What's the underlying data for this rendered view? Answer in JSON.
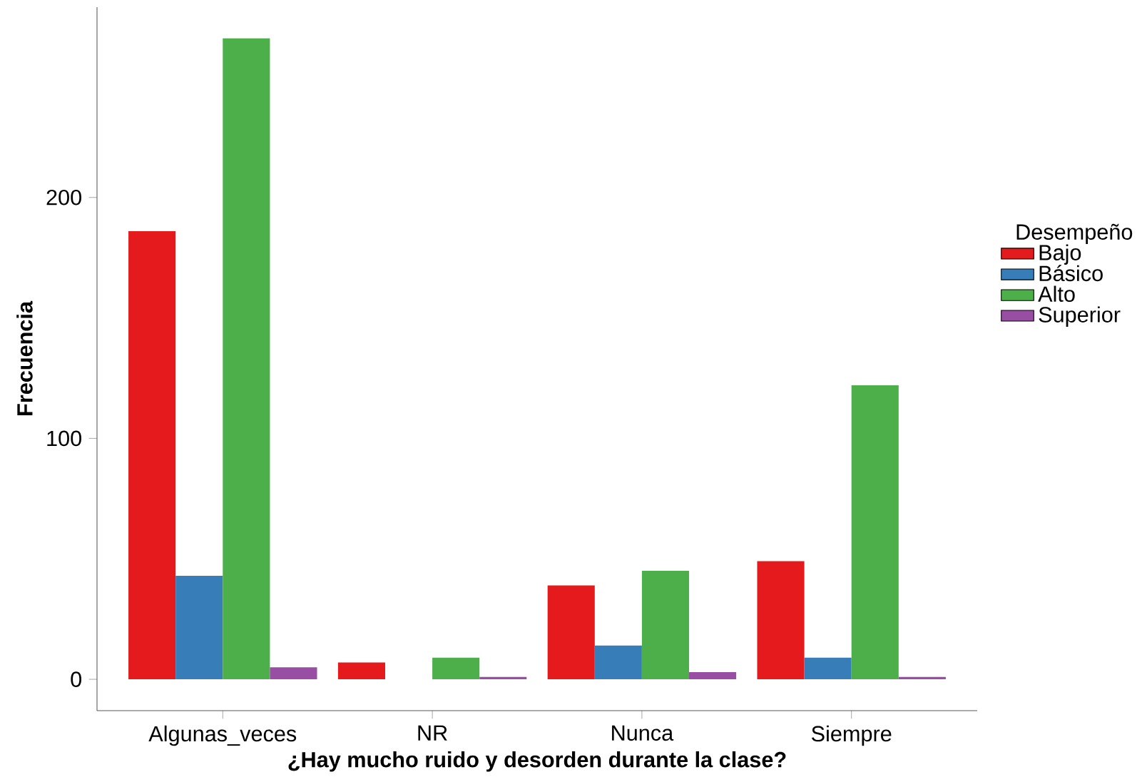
{
  "chart_data": {
    "type": "bar",
    "xlabel": "¿Hay mucho ruido y desorden durante la clase?",
    "ylabel": "Frecuencia",
    "legend_title": "Desempeño",
    "categories": [
      "Algunas_veces",
      "NR",
      "Nunca",
      "Siempre"
    ],
    "series": [
      {
        "name": "Bajo",
        "color": "#e41a1c",
        "values": [
          186,
          7,
          39,
          49
        ]
      },
      {
        "name": "Básico",
        "color": "#377eb8",
        "values": [
          43,
          0,
          14,
          9
        ]
      },
      {
        "name": "Alto",
        "color": "#4daf4a",
        "values": [
          266,
          9,
          45,
          122
        ]
      },
      {
        "name": "Superior",
        "color": "#984ea3",
        "values": [
          5,
          1,
          3,
          1
        ]
      }
    ],
    "ylim": [
      -13,
      279
    ],
    "yticks": [
      0,
      100,
      200
    ],
    "grid": false,
    "legend": "right"
  }
}
